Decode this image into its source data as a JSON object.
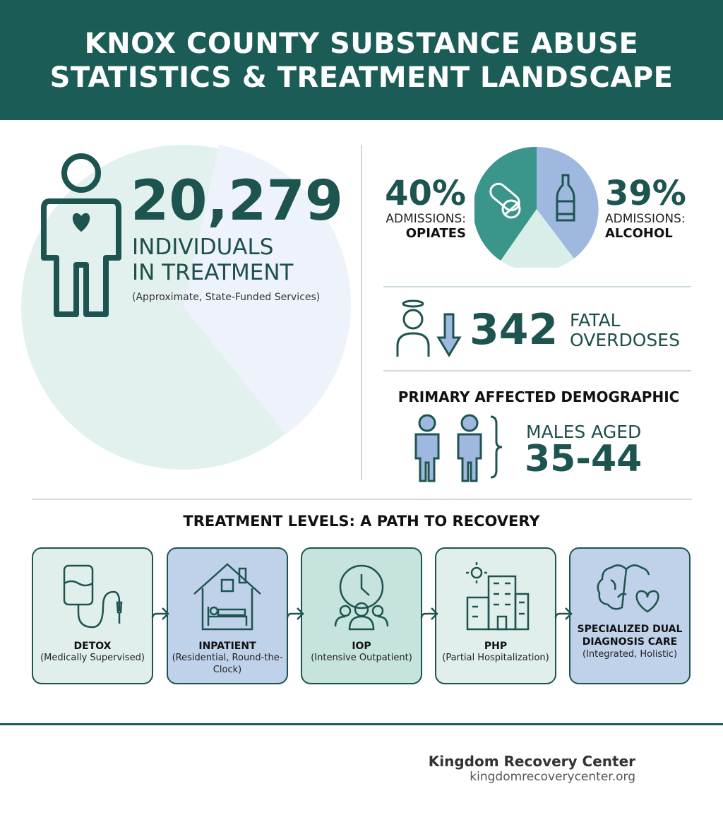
{
  "header": {
    "title_line1": "KNOX COUNTY SUBSTANCE ABUSE",
    "title_line2": "STATISTICS & TREATMENT LANDSCAPE"
  },
  "treatment": {
    "count": "20,279",
    "label_line1": "INDIVIDUALS",
    "label_line2": "IN TREATMENT",
    "note": "(Approximate, State-Funded Services)"
  },
  "admissions": {
    "opiates": {
      "percent": "40%",
      "label": "ADMISSIONS:",
      "substance": "OPIATES",
      "value": 40
    },
    "alcohol": {
      "percent": "39%",
      "label": "ADMISSIONS:",
      "substance": "ALCOHOL",
      "value": 39
    },
    "colors": {
      "opiates": "#3a958b",
      "alcohol": "#9fb8df",
      "other": "#d9ede9"
    }
  },
  "overdoses": {
    "count": "342",
    "label_line1": "FATAL",
    "label_line2": "OVERDOSES"
  },
  "demographic": {
    "heading": "PRIMARY AFFECTED DEMOGRAPHIC",
    "label": "MALES AGED",
    "range": "35-44"
  },
  "levels": {
    "heading": "TREATMENT LEVELS: A PATH TO RECOVERY",
    "items": [
      {
        "title": "DETOX",
        "desc": "(Medically Supervised)",
        "icon": "iv-bag-icon",
        "color": "#e0efec"
      },
      {
        "title": "INPATIENT",
        "desc": "(Residential, Round-the-Clock)",
        "icon": "house-bed-icon",
        "color": "#c0d1ea"
      },
      {
        "title": "IOP",
        "desc": "(Intensive Outpatient)",
        "icon": "clock-group-icon",
        "color": "#c6e3de"
      },
      {
        "title": "PHP",
        "desc": "(Partial Hospitalization)",
        "icon": "hospital-icon",
        "color": "#e0efec"
      },
      {
        "title": "SPECIALIZED DUAL DIAGNOSIS CARE",
        "desc": "(Integrated, Holistic)",
        "icon": "brain-heart-icon",
        "color": "#c0d1ea"
      }
    ]
  },
  "footer": {
    "brand": "Kingdom Recovery Center",
    "url": "kingdomrecoverycenter.org"
  }
}
